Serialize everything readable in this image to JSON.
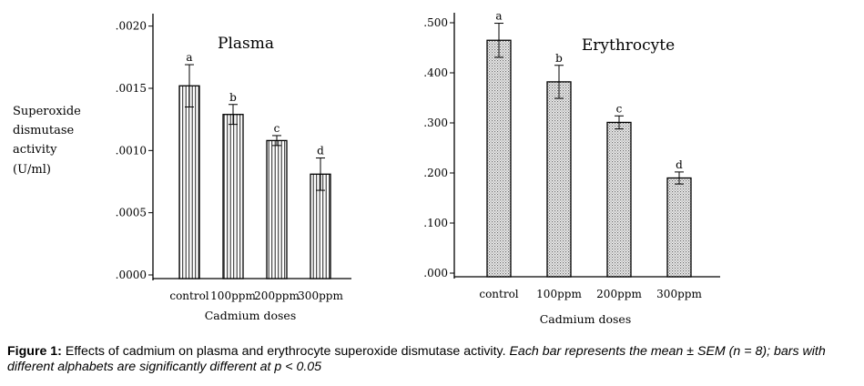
{
  "ylabel_lines": [
    "Superoxide",
    "dismutase",
    "activity",
    "(U/ml)"
  ],
  "chart_data": [
    {
      "type": "bar",
      "title": "Plasma",
      "xlabel": "Cadmium doses",
      "ylabel": "Superoxide dismutase activity (U/ml)",
      "categories": [
        "control",
        "100ppm",
        "200ppm",
        "300ppm"
      ],
      "values": [
        0.00152,
        0.00129,
        0.00108,
        0.00081
      ],
      "errors": [
        0.00017,
        8e-05,
        4e-05,
        0.00013
      ],
      "significance": [
        "a",
        "b",
        "c",
        "d"
      ],
      "ylim": [
        0,
        0.0021
      ],
      "yticks": [
        0,
        0.0005,
        0.001,
        0.0015,
        0.002
      ],
      "ytick_labels": [
        ".0000",
        ".0005",
        ".0010",
        ".0015",
        ".0020"
      ],
      "fill": "vertical-stripes",
      "grid": false
    },
    {
      "type": "bar",
      "title": "Erythrocyte",
      "xlabel": "Cadmium doses",
      "ylabel": "Superoxide dismutase activity (U/ml)",
      "categories": [
        "control",
        "100ppm",
        "200ppm",
        "300ppm"
      ],
      "values": [
        0.465,
        0.382,
        0.301,
        0.19
      ],
      "errors": [
        0.034,
        0.033,
        0.013,
        0.012
      ],
      "significance": [
        "a",
        "b",
        "c",
        "d"
      ],
      "ylim": [
        0,
        0.52
      ],
      "yticks": [
        0,
        0.1,
        0.2,
        0.3,
        0.4,
        0.5
      ],
      "ytick_labels": [
        ".000",
        ".100",
        ".200",
        ".300",
        ".400",
        ".500"
      ],
      "fill": "dotted",
      "grid": false
    }
  ],
  "caption": {
    "label": "Figure 1:",
    "text": " Effects of cadmium on plasma and erythrocyte superoxide dismutase activity. ",
    "italic": "Each bar represents the mean ± SEM (n = 8); bars with different alphabets are significantly different at p < 0.05"
  }
}
